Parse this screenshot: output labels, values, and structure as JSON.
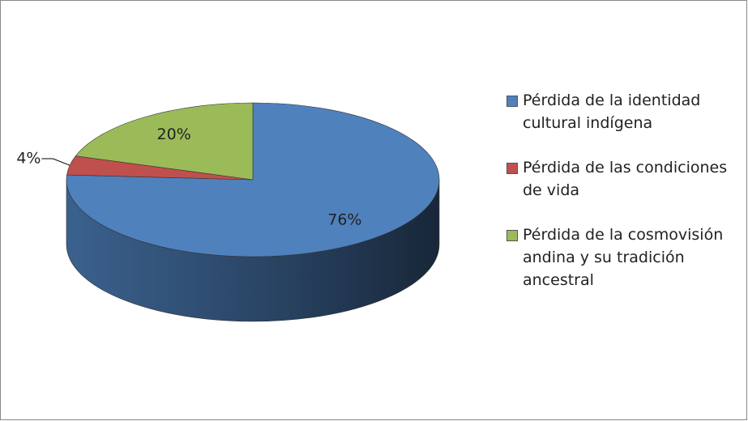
{
  "chart_data": {
    "type": "pie",
    "categories": [
      "Pérdida de la identidad cultural indígena",
      "Pérdida de las condiciones de vida",
      "Pérdida de la cosmovisión andina y su tradición ancestral"
    ],
    "values": [
      76,
      4,
      20
    ],
    "value_labels": [
      "76%",
      "4%",
      "20%"
    ],
    "colors": [
      "#4f81bd",
      "#c0504d",
      "#9bbb59"
    ],
    "legend": "right"
  }
}
